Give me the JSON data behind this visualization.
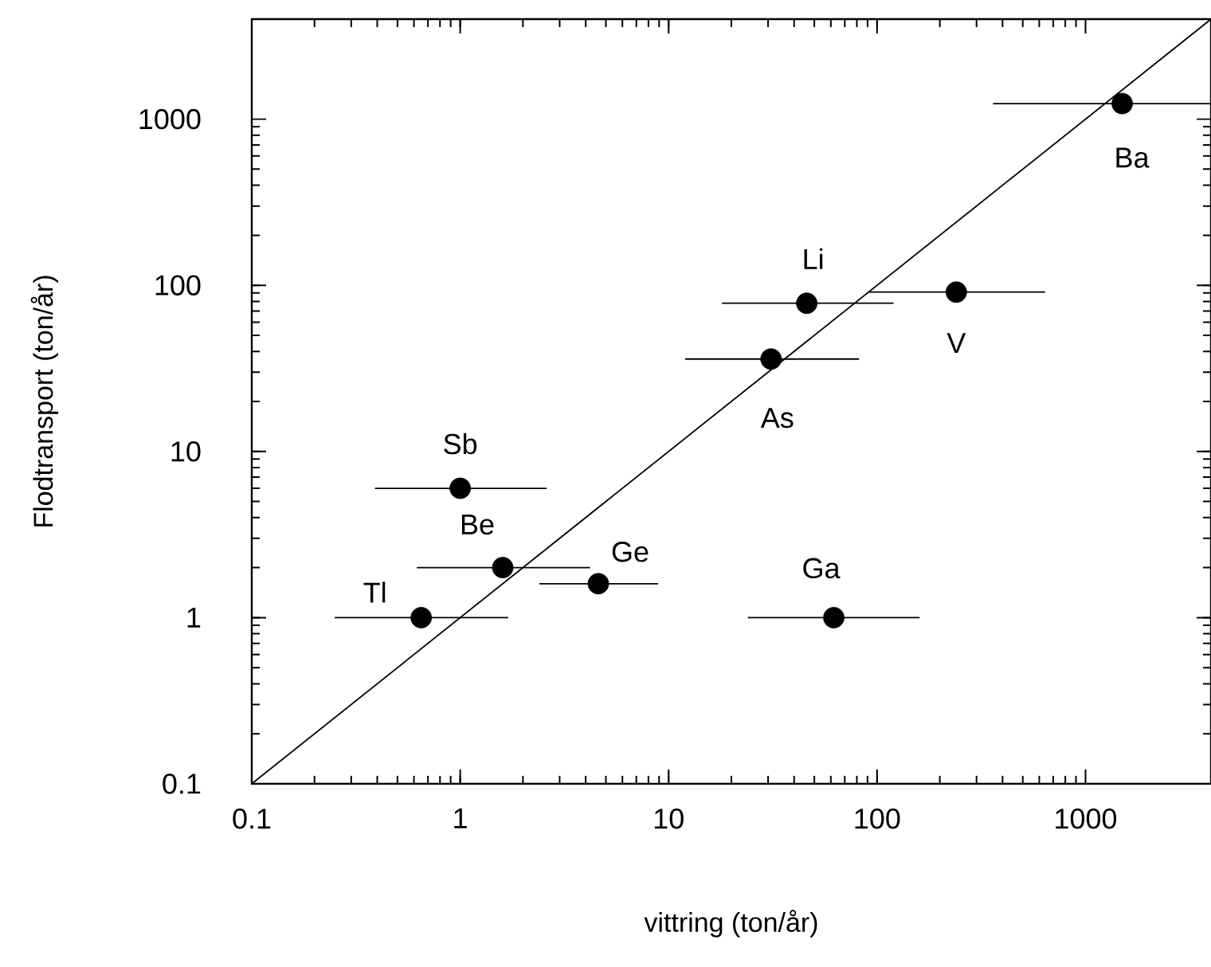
{
  "chart_data": {
    "type": "scatter",
    "xlabel": "vittring (ton/år)",
    "ylabel": "Flodtransport (ton/år)",
    "log": "xy",
    "xlim": [
      0.1,
      4000
    ],
    "ylim": [
      0.1,
      4000
    ],
    "xticks": [
      0.1,
      1,
      10,
      100,
      1000
    ],
    "yticks": [
      0.1,
      1,
      10,
      100,
      1000
    ],
    "grid": false,
    "series": [
      {
        "color": "#000000",
        "marker": "circle",
        "x": [
          1.0,
          1.6,
          4.6,
          0.65,
          46,
          240,
          31,
          62,
          1500
        ],
        "values": [
          6,
          2.0,
          1.6,
          1,
          78,
          91,
          36,
          1,
          1240
        ],
        "xerrors": [
          [
            0.39,
            2.6
          ],
          [
            0.62,
            4.2
          ],
          [
            2.4,
            8.9
          ],
          [
            0.25,
            1.7
          ],
          [
            18,
            120
          ],
          [
            91,
            640
          ],
          [
            12,
            82
          ],
          [
            24,
            160
          ],
          [
            360,
            4000
          ]
        ]
      },
      {
        "type": "line",
        "color": "#000000",
        "x": [
          0.1,
          4000
        ],
        "values": [
          0.1,
          4000
        ],
        "marker": "none",
        "line_style": "solid"
      }
    ],
    "annotations": [
      {
        "text": "Sb",
        "x": 1.0,
        "y": 6
      },
      {
        "text": "Be",
        "x": 1.6,
        "y": 2.0
      },
      {
        "text": "Ge",
        "x": 4.6,
        "y": 1.6
      },
      {
        "text": "Tl",
        "x": 0.65,
        "y": 1
      },
      {
        "text": "Li",
        "x": 46,
        "y": 78
      },
      {
        "text": "V",
        "x": 240,
        "y": 91
      },
      {
        "text": "As",
        "x": 31,
        "y": 36
      },
      {
        "text": "Ga",
        "x": 62,
        "y": 1
      },
      {
        "text": "Ba",
        "x": 1500,
        "y": 1240
      }
    ]
  }
}
